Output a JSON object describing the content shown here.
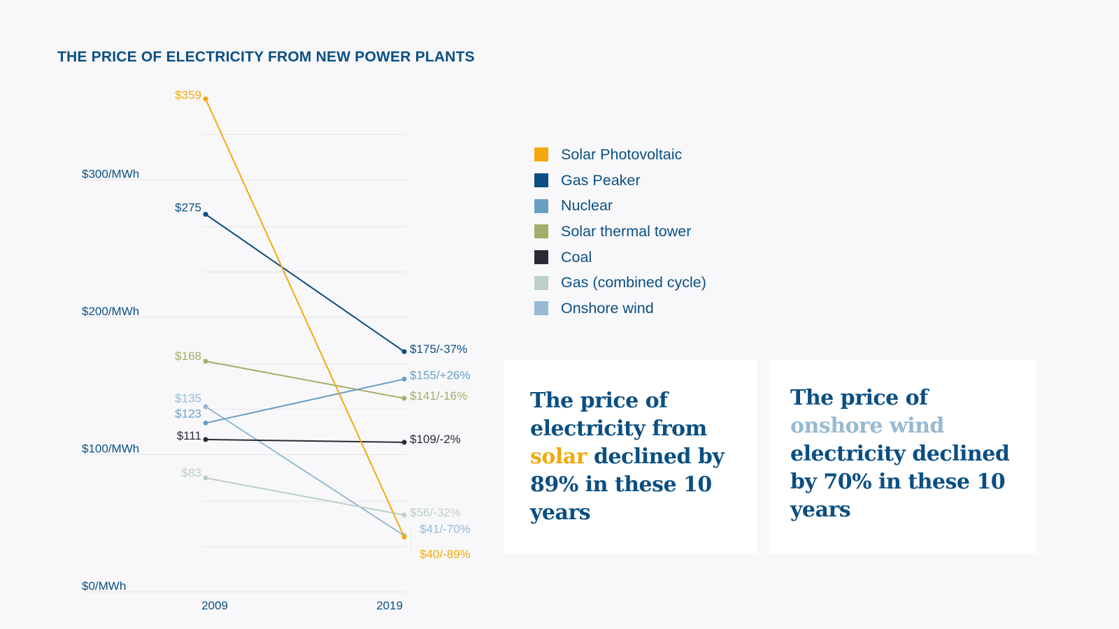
{
  "chart_data": {
    "type": "line",
    "title": "THE PRICE OF ELECTRICITY FROM NEW POWER PLANTS",
    "x": [
      "2009",
      "2019"
    ],
    "ylim": [
      0,
      359
    ],
    "y_tick_values": [
      0,
      100,
      200,
      300
    ],
    "y_tick_labels": [
      "$0/MWh",
      "$100/MWh",
      "$200/MWh",
      "$300/MWh"
    ],
    "series": [
      {
        "name": "Solar Photovoltaic",
        "color": "#f2a90c",
        "values": [
          359,
          40
        ],
        "start_label": "$359",
        "end_label": "$40/-89%"
      },
      {
        "name": "Gas Peaker",
        "color": "#0b4f82",
        "values": [
          275,
          175
        ],
        "start_label": "$275",
        "end_label": "$175/-37%"
      },
      {
        "name": "Nuclear",
        "color": "#6a9fc4",
        "values": [
          123,
          155
        ],
        "start_label": "$123",
        "end_label": "$155/+26%"
      },
      {
        "name": "Solar thermal tower",
        "color": "#a6ad68",
        "values": [
          168,
          141
        ],
        "start_label": "$168",
        "end_label": "$141/-16%"
      },
      {
        "name": "Coal",
        "color": "#2b2b35",
        "values": [
          111,
          109
        ],
        "start_label": "$111",
        "end_label": "$109/-2%"
      },
      {
        "name": "Gas (combined cycle)",
        "color": "#bccfc8",
        "values": [
          83,
          56
        ],
        "start_label": "$83",
        "end_label": "$56/-32%"
      },
      {
        "name": "Onshore wind",
        "color": "#97b9d3",
        "values": [
          135,
          41
        ],
        "start_label": "$135",
        "end_label": "$41/-70%"
      }
    ]
  },
  "callouts": {
    "solar": {
      "before": "The price of electricity from ",
      "highlight": "solar",
      "after": " declined by 89% in these 10 years"
    },
    "wind": {
      "before": "The price of ",
      "highlight": "onshore wind",
      "after": " electricity declined by 70% in these 10 years"
    }
  }
}
